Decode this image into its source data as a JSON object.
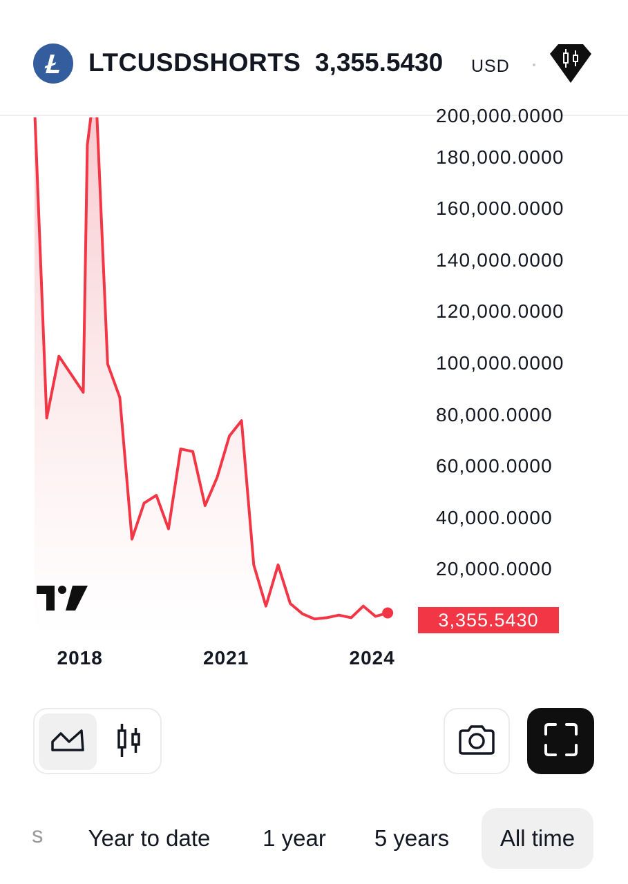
{
  "header": {
    "symbol": "LTCUSDSHORTS",
    "price": "3,355.5430",
    "currency": "USD",
    "coin_icon": "litecoin-icon",
    "badge_icon": "candlestick-gem-icon"
  },
  "chart_data": {
    "type": "area",
    "x_tick_labels": [
      "2018",
      "2021",
      "2024"
    ],
    "y_tick_labels": [
      "180,000.0000",
      "160,000.0000",
      "140,000.0000",
      "120,000.0000",
      "100,000.0000",
      "80,000.0000",
      "60,000.0000",
      "40,000.0000",
      "20,000.0000"
    ],
    "last_value_label": "3,355.5430",
    "ylim": [
      0,
      200000
    ],
    "x": [
      "2017-01",
      "2017-04",
      "2017-07",
      "2017-10",
      "2018-01",
      "2018-02",
      "2018-04",
      "2018-07",
      "2018-10",
      "2019-01",
      "2019-04",
      "2019-07",
      "2019-10",
      "2020-01",
      "2020-04",
      "2020-07",
      "2020-10",
      "2021-01",
      "2021-04",
      "2021-07",
      "2021-10",
      "2022-01",
      "2022-04",
      "2022-07",
      "2022-10",
      "2023-01",
      "2023-04",
      "2023-07",
      "2023-10",
      "2024-01",
      "2024-04",
      "2024-07",
      "2024-10"
    ],
    "values": [
      200000,
      79000,
      103000,
      96000,
      89000,
      185000,
      210000,
      100000,
      87000,
      32000,
      46000,
      49000,
      36000,
      67000,
      66000,
      45000,
      56000,
      72000,
      78000,
      22000,
      6000,
      22000,
      7000,
      3000,
      1000,
      1500,
      2500,
      1500,
      6000,
      2000,
      3355.543,
      null,
      null
    ],
    "line_color": "#f23645",
    "fill_color": "#fbd9dc",
    "grid": false
  },
  "logo": {
    "name": "tradingview-logo"
  },
  "controls": {
    "area_icon": "area-chart-icon",
    "candles_icon": "candlestick-icon",
    "camera_icon": "camera-icon",
    "fullscreen_icon": "fullscreen-icon"
  },
  "ranges": {
    "partial": "s",
    "items": [
      "Year to date",
      "1 year",
      "5 years",
      "All time"
    ],
    "selected": "All time"
  },
  "colors": {
    "accent": "#f23645",
    "coin": "#345d9d"
  }
}
